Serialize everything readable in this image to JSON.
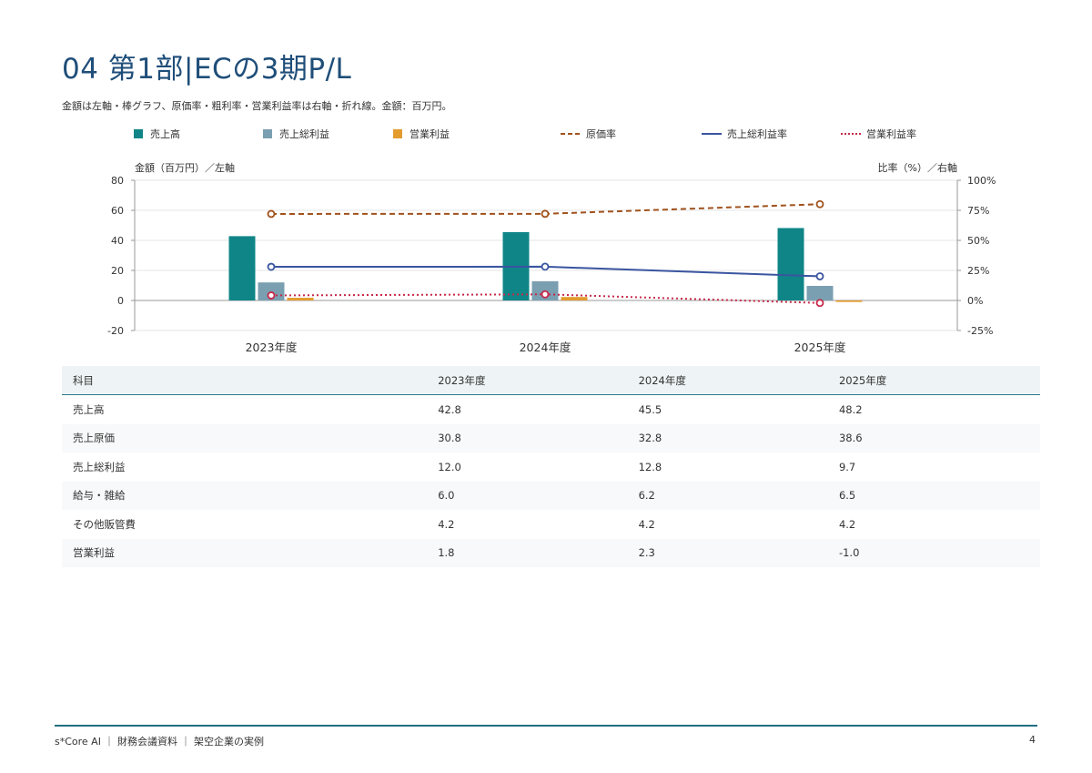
{
  "title": "04 第1部|ECの3期P/L",
  "note": "金額は左軸・棒グラフ、原価率・粗利率・営業利益率は右軸・折れ線。金額：百万円。",
  "legend": [
    {
      "label": "売上高",
      "kind": "bar",
      "color": "#0f8587"
    },
    {
      "label": "売上総利益",
      "kind": "bar",
      "color": "#7a9fb1"
    },
    {
      "label": "営業利益",
      "kind": "bar",
      "color": "#e39b2e"
    },
    {
      "label": "原価率",
      "kind": "dash",
      "color": "#a0521d"
    },
    {
      "label": "売上総利益率",
      "kind": "solid",
      "color": "#3a55a0"
    },
    {
      "label": "営業利益率",
      "kind": "dot",
      "color": "#c7294a"
    }
  ],
  "chart_data": {
    "type": "bar",
    "categories": [
      "2023年度",
      "2024年度",
      "2025年度"
    ],
    "left_axis_title": "金額（百万円）／左軸",
    "right_axis_title": "比率（%）／右軸",
    "left_ylim": [
      -20,
      80
    ],
    "left_ticks": [
      "80",
      "60",
      "40",
      "20",
      "0",
      "-20"
    ],
    "right_ylim": [
      -25,
      100
    ],
    "right_ticks": [
      "100%",
      "75%",
      "50%",
      "25%",
      "0%",
      "-25%"
    ],
    "grid": true,
    "bars": [
      {
        "name": "売上高",
        "values": [
          42.8,
          45.5,
          48.2
        ],
        "color": "#0f8587"
      },
      {
        "name": "売上総利益",
        "values": [
          12.0,
          12.8,
          9.7
        ],
        "color": "#7a9fb1"
      },
      {
        "name": "営業利益",
        "values": [
          1.8,
          2.3,
          -1.0
        ],
        "color": "#e39b2e"
      }
    ],
    "lines": [
      {
        "name": "原価率",
        "values": [
          72.0,
          72.1,
          80.1
        ],
        "color": "#a0521d",
        "style": "dash"
      },
      {
        "name": "売上総利益率",
        "values": [
          28.0,
          28.1,
          20.1
        ],
        "color": "#3a55a0",
        "style": "solid"
      },
      {
        "name": "営業利益率",
        "values": [
          4.2,
          5.1,
          -2.1
        ],
        "color": "#c7294a",
        "style": "dot"
      }
    ]
  },
  "table": {
    "headers": [
      "科目",
      "2023年度",
      "2024年度",
      "2025年度"
    ],
    "rows": [
      [
        "売上高",
        "42.8",
        "45.5",
        "48.2"
      ],
      [
        "売上原価",
        "30.8",
        "32.8",
        "38.6"
      ],
      [
        "売上総利益",
        "12.0",
        "12.8",
        "9.7"
      ],
      [
        "給与・雑給",
        "6.0",
        "6.2",
        "6.5"
      ],
      [
        "その他販管費",
        "4.2",
        "4.2",
        "4.2"
      ],
      [
        "営業利益",
        "1.8",
        "2.3",
        "-1.0"
      ]
    ]
  },
  "footer": "s*Core AI ｜ 財務会議資料 ｜ 架空企業の実例",
  "page_number": "4"
}
